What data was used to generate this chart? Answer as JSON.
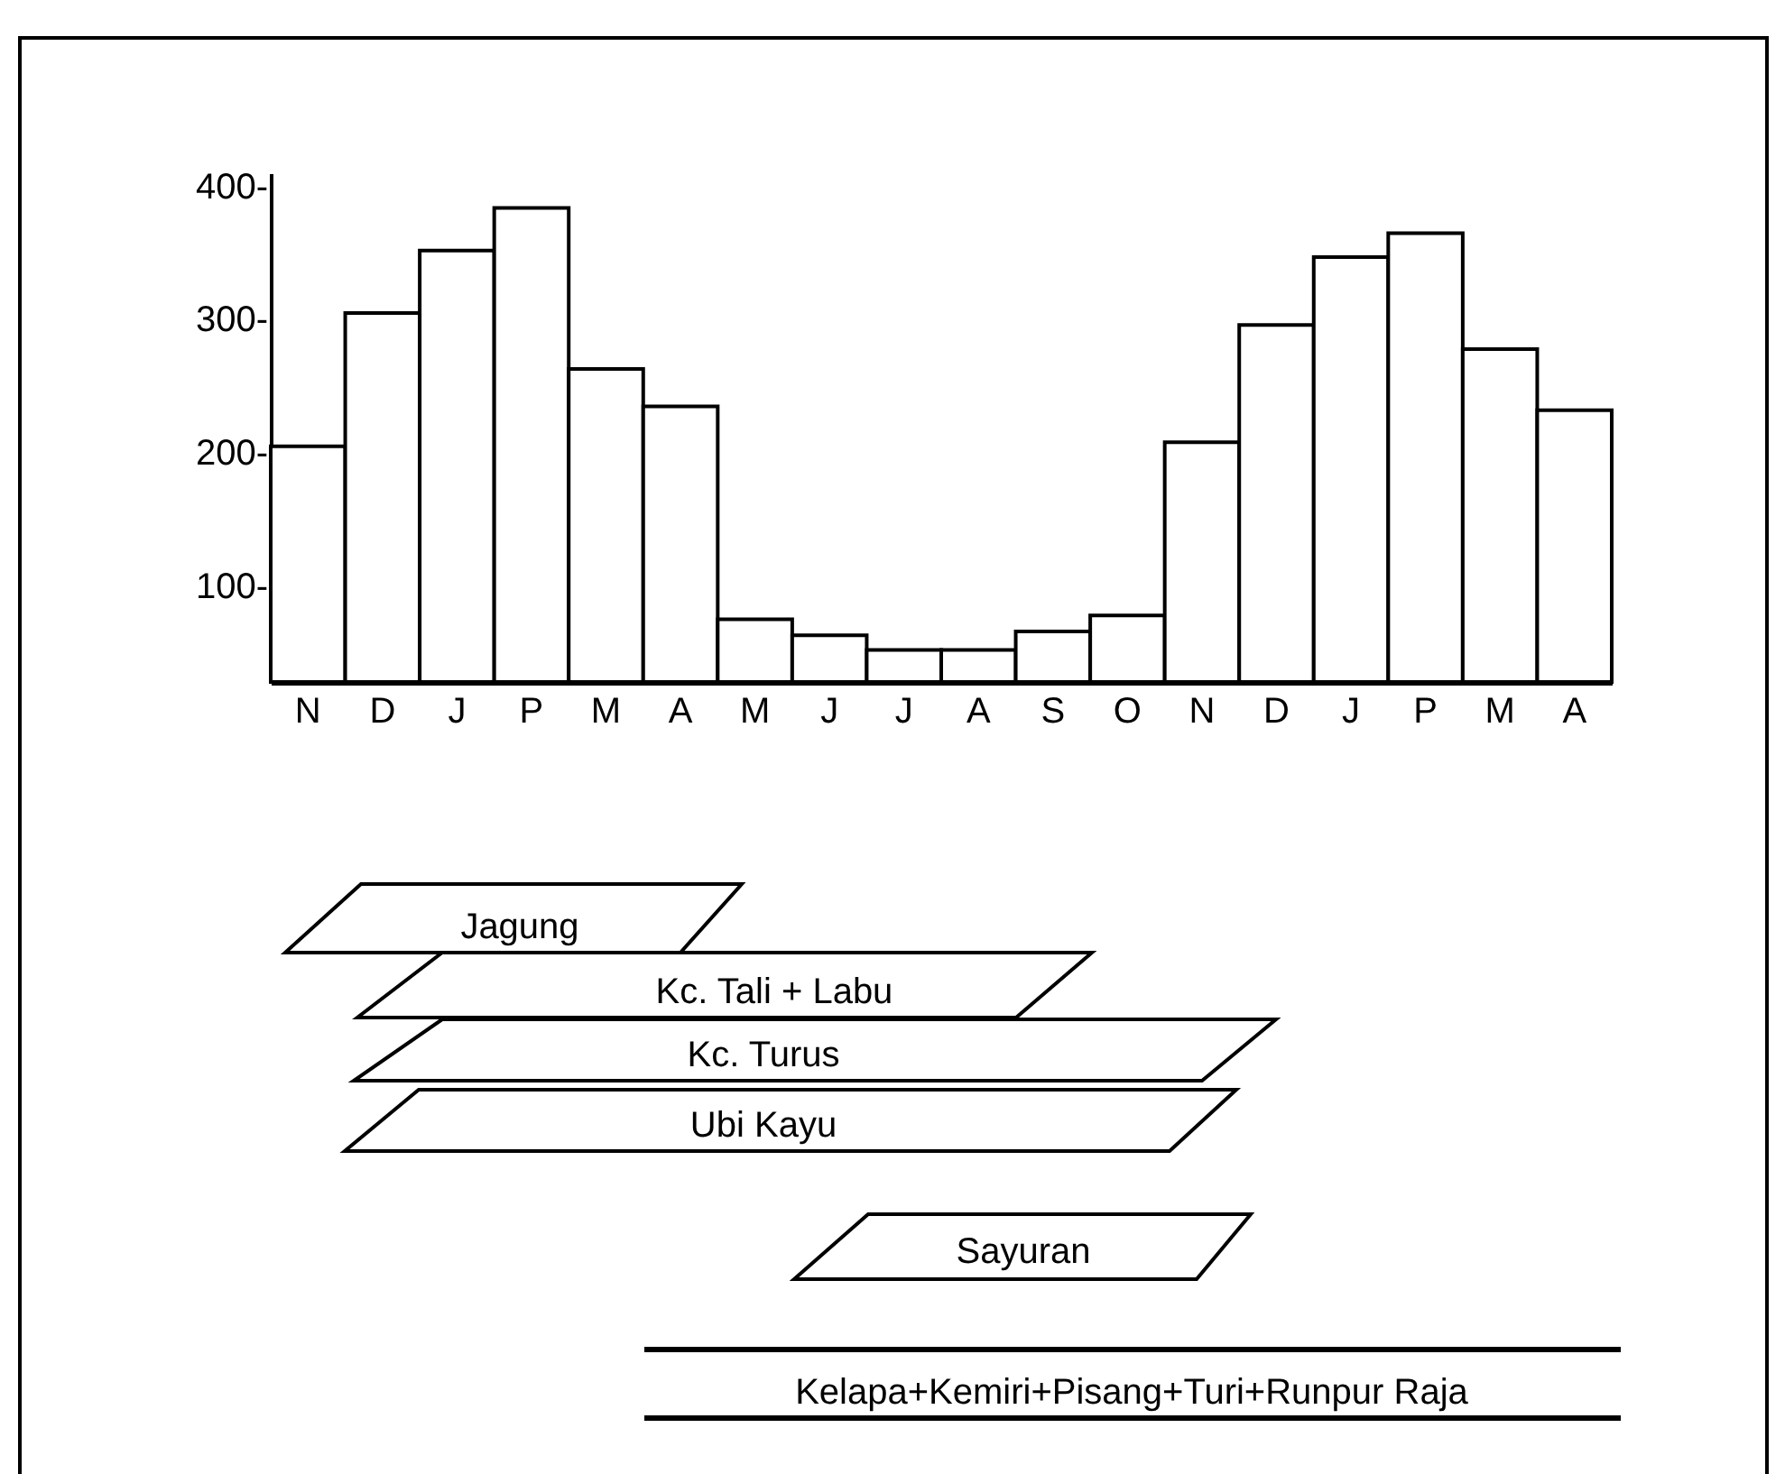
{
  "chart_data": {
    "type": "bar",
    "categories": [
      "N",
      "D",
      "J",
      "P",
      "M",
      "A",
      "M",
      "J",
      "J",
      "A",
      "S",
      "O",
      "N",
      "D",
      "J",
      "P",
      "M",
      "A"
    ],
    "values": [
      205,
      305,
      352,
      384,
      263,
      235,
      75,
      63,
      52,
      52,
      66,
      78,
      208,
      296,
      347,
      365,
      278,
      232
    ],
    "color": "#ffffff",
    "ylim": [
      28,
      410
    ],
    "yticks": [
      {
        "value": 100,
        "label": "100-"
      },
      {
        "value": 200,
        "label": "200-"
      },
      {
        "value": 300,
        "label": "300-"
      },
      {
        "value": 400,
        "label": "400-"
      }
    ],
    "grid": false,
    "annotations": [
      "Jagung",
      "Kc. Tali + Labu",
      "Kc. Turus",
      "Ubi Kayu",
      "Sayuran",
      "Kelapa+Kemiri+Pisang+Turi+Runpur Raja"
    ]
  }
}
